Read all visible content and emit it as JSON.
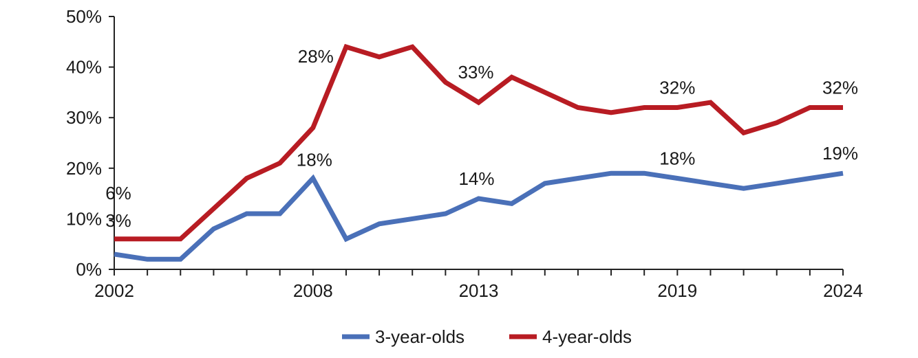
{
  "chart_data": {
    "type": "line",
    "x": [
      2002,
      2003,
      2004,
      2005,
      2006,
      2007,
      2008,
      2009,
      2010,
      2011,
      2012,
      2013,
      2014,
      2015,
      2016,
      2017,
      2018,
      2019,
      2020,
      2021,
      2022,
      2023,
      2024
    ],
    "series": [
      {
        "name": "3-year-olds",
        "color": "#4a70b8",
        "values": [
          3,
          2,
          2,
          8,
          11,
          11,
          18,
          6,
          9,
          10,
          11,
          14,
          13,
          17,
          18,
          19,
          19,
          18,
          17,
          16,
          17,
          18,
          19
        ]
      },
      {
        "name": "4-year-olds",
        "color": "#b81c23",
        "values": [
          6,
          6,
          6,
          12,
          18,
          21,
          28,
          44,
          42,
          44,
          37,
          33,
          38,
          35,
          32,
          31,
          32,
          32,
          33,
          27,
          29,
          32,
          32
        ]
      }
    ],
    "x_tick_labels": [
      "2002",
      "2008",
      "2013",
      "2019",
      "2024"
    ],
    "y_tick_labels": [
      "0%",
      "10%",
      "20%",
      "30%",
      "40%",
      "50%"
    ],
    "ylim": [
      0,
      50
    ],
    "xlim": [
      2002,
      2024
    ],
    "grid": false,
    "legend_position": "bottom",
    "data_labels": [
      {
        "series": 0,
        "year": 2002,
        "text": "3%"
      },
      {
        "series": 0,
        "year": 2008,
        "text": "18%"
      },
      {
        "series": 0,
        "year": 2013,
        "text": "14%"
      },
      {
        "series": 0,
        "year": 2019,
        "text": "18%"
      },
      {
        "series": 0,
        "year": 2024,
        "text": "19%"
      },
      {
        "series": 1,
        "year": 2002,
        "text": "6%"
      },
      {
        "series": 1,
        "year": 2008,
        "text": "28%"
      },
      {
        "series": 1,
        "year": 2013,
        "text": "33%"
      },
      {
        "series": 1,
        "year": 2019,
        "text": "32%"
      },
      {
        "series": 1,
        "year": 2024,
        "text": "32%"
      }
    ]
  }
}
